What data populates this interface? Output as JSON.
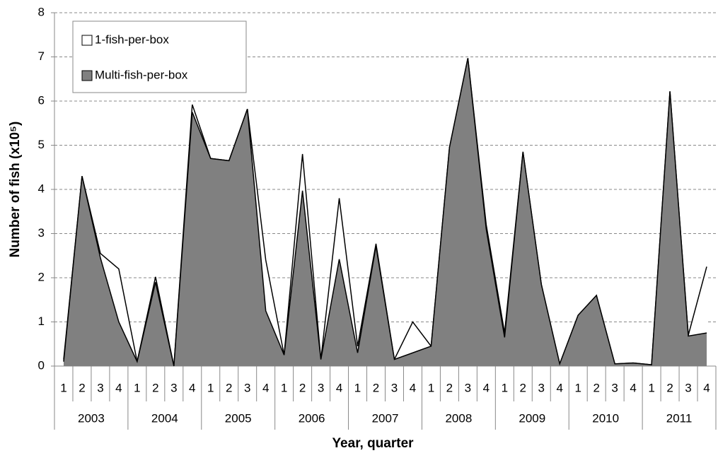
{
  "chart_data": {
    "type": "area",
    "x_label": "Year, quarter",
    "y_label": "Number of fish (x10⁵)",
    "categories": [
      "1",
      "2",
      "3",
      "4",
      "1",
      "2",
      "3",
      "4",
      "1",
      "2",
      "3",
      "4",
      "1",
      "2",
      "3",
      "4",
      "1",
      "2",
      "3",
      "4",
      "1",
      "2",
      "3",
      "4",
      "1",
      "2",
      "3",
      "4",
      "1",
      "2",
      "3",
      "4",
      "1",
      "2",
      "3",
      "4"
    ],
    "years": [
      "2003",
      "2004",
      "2005",
      "2006",
      "2007",
      "2008",
      "2009",
      "2010",
      "2011"
    ],
    "series": [
      {
        "name": "1-fish-per-box",
        "color": "#ffffff",
        "values": [
          0.15,
          4.3,
          2.55,
          2.2,
          0.1,
          2.02,
          0,
          5.92,
          4.7,
          4.65,
          5.82,
          2.4,
          0.25,
          4.8,
          0.15,
          3.8,
          0.45,
          2.77,
          0.15,
          1.0,
          0.45,
          4.95,
          6.97,
          3.2,
          0.75,
          4.85,
          1.85,
          0.05,
          1.15,
          1.6,
          0.05,
          0.07,
          0.03,
          6.22,
          0.7,
          2.25
        ]
      },
      {
        "name": "Multi-fish-per-box",
        "color": "#808080",
        "values": [
          0.1,
          4.3,
          2.45,
          1.0,
          0.1,
          1.9,
          0,
          5.75,
          4.7,
          4.65,
          5.82,
          1.25,
          0.25,
          3.97,
          0.15,
          2.42,
          0.3,
          2.72,
          0.15,
          0.3,
          0.45,
          4.95,
          6.97,
          3.1,
          0.65,
          4.85,
          1.85,
          0.05,
          1.15,
          1.6,
          0.05,
          0.07,
          0.03,
          6.22,
          0.68,
          0.75
        ]
      }
    ],
    "ylim": [
      0,
      8
    ],
    "yticks": [
      0,
      1,
      2,
      3,
      4,
      5,
      6,
      7,
      8
    ],
    "grid": true,
    "legend_position": "upper left"
  }
}
